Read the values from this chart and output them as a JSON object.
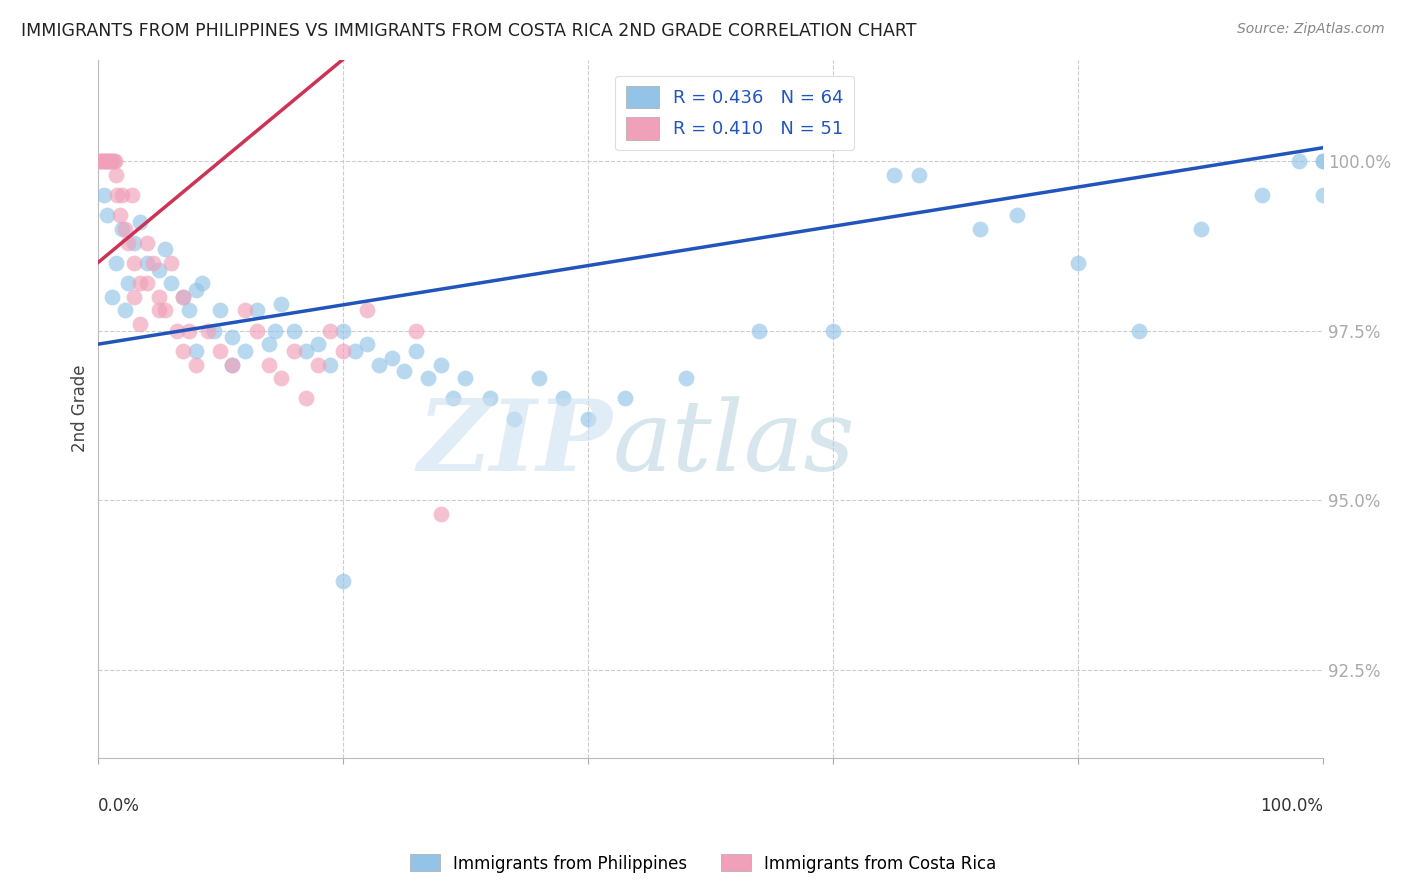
{
  "title": "IMMIGRANTS FROM PHILIPPINES VS IMMIGRANTS FROM COSTA RICA 2ND GRADE CORRELATION CHART",
  "source": "Source: ZipAtlas.com",
  "ylabel": "2nd Grade",
  "xlim": [
    0,
    100
  ],
  "ylim": [
    91.2,
    101.5
  ],
  "yticks": [
    92.5,
    95.0,
    97.5,
    100.0
  ],
  "ytick_labels": [
    "92.5%",
    "95.0%",
    "97.5%",
    "100.0%"
  ],
  "legend_blue_label": "R = 0.436   N = 64",
  "legend_pink_label": "R = 0.410   N = 51",
  "blue_color": "#93c4e8",
  "pink_color": "#f0a0b8",
  "blue_line_color": "#2255bb",
  "pink_line_color": "#cc3355",
  "blue_line_x0": 0,
  "blue_line_y0": 97.3,
  "blue_line_x1": 100,
  "blue_line_y1": 100.2,
  "pink_line_x0": 0,
  "pink_line_y0": 98.5,
  "pink_line_x1": 20,
  "pink_line_y1": 101.5,
  "blue_x": [
    0.5,
    0.8,
    1.5,
    2.0,
    2.5,
    3.0,
    3.5,
    4.0,
    5.0,
    5.5,
    6.0,
    7.0,
    7.5,
    8.0,
    8.5,
    9.5,
    10.0,
    11.0,
    12.0,
    13.0,
    14.0,
    14.5,
    15.0,
    16.0,
    17.0,
    18.0,
    19.0,
    20.0,
    21.0,
    22.0,
    23.0,
    24.0,
    25.0,
    26.0,
    27.0,
    28.0,
    29.0,
    30.0,
    32.0,
    34.0,
    36.0,
    38.0,
    40.0,
    43.0,
    48.0,
    54.0,
    60.0,
    65.0,
    67.0,
    72.0,
    75.0,
    80.0,
    85.0,
    90.0,
    95.0,
    98.0,
    100.0,
    100.0,
    100.0,
    1.2,
    2.2,
    8.0,
    11.0,
    20.0
  ],
  "blue_y": [
    99.5,
    99.2,
    98.5,
    99.0,
    98.2,
    98.8,
    99.1,
    98.5,
    98.4,
    98.7,
    98.2,
    98.0,
    97.8,
    98.1,
    98.2,
    97.5,
    97.8,
    97.4,
    97.2,
    97.8,
    97.3,
    97.5,
    97.9,
    97.5,
    97.2,
    97.3,
    97.0,
    97.5,
    97.2,
    97.3,
    97.0,
    97.1,
    96.9,
    97.2,
    96.8,
    97.0,
    96.5,
    96.8,
    96.5,
    96.2,
    96.8,
    96.5,
    96.2,
    96.5,
    96.8,
    97.5,
    97.5,
    99.8,
    99.8,
    99.0,
    99.2,
    98.5,
    97.5,
    99.0,
    99.5,
    100.0,
    100.0,
    99.5,
    100.0,
    98.0,
    97.8,
    97.2,
    97.0,
    93.8
  ],
  "pink_x": [
    0.2,
    0.3,
    0.4,
    0.5,
    0.6,
    0.7,
    0.8,
    0.9,
    1.0,
    1.1,
    1.2,
    1.3,
    1.4,
    1.5,
    1.6,
    1.8,
    2.0,
    2.2,
    2.5,
    2.8,
    3.0,
    3.5,
    4.0,
    4.5,
    5.0,
    5.5,
    6.0,
    6.5,
    7.0,
    7.5,
    8.0,
    9.0,
    10.0,
    11.0,
    12.0,
    13.0,
    14.0,
    15.0,
    16.0,
    17.0,
    18.0,
    19.0,
    20.0,
    22.0,
    26.0,
    28.0,
    3.0,
    4.0,
    5.0,
    7.0,
    3.5
  ],
  "pink_y": [
    100.0,
    100.0,
    100.0,
    100.0,
    100.0,
    100.0,
    100.0,
    100.0,
    100.0,
    100.0,
    100.0,
    100.0,
    100.0,
    99.8,
    99.5,
    99.2,
    99.5,
    99.0,
    98.8,
    99.5,
    98.5,
    98.2,
    98.8,
    98.5,
    98.0,
    97.8,
    98.5,
    97.5,
    97.2,
    97.5,
    97.0,
    97.5,
    97.2,
    97.0,
    97.8,
    97.5,
    97.0,
    96.8,
    97.2,
    96.5,
    97.0,
    97.5,
    97.2,
    97.8,
    97.5,
    94.8,
    98.0,
    98.2,
    97.8,
    98.0,
    97.6
  ]
}
